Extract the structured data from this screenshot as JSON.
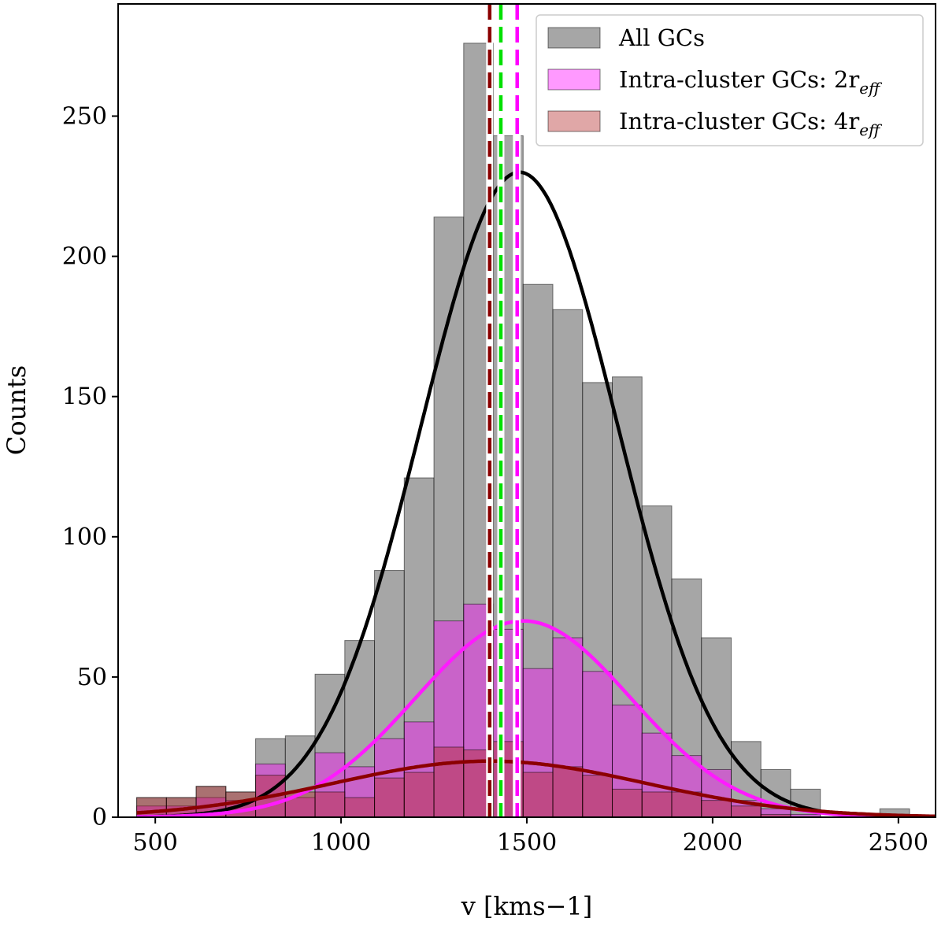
{
  "chart_data": {
    "type": "bar",
    "xlabel": "v [kms−1]",
    "ylabel": "Counts",
    "xlim": [
      400,
      2600
    ],
    "ylim": [
      0,
      290
    ],
    "xticks": [
      500,
      1000,
      1500,
      2000,
      2500
    ],
    "yticks": [
      0,
      50,
      100,
      150,
      200,
      250
    ],
    "bin_edges": [
      450,
      530,
      610,
      690,
      770,
      850,
      930,
      1010,
      1090,
      1170,
      1250,
      1330,
      1410,
      1490,
      1570,
      1650,
      1730,
      1810,
      1890,
      1970,
      2050,
      2130,
      2210,
      2290,
      2370,
      2450,
      2530
    ],
    "legend_position": "top-right",
    "series": [
      {
        "name": "All GCs",
        "color": "#808080",
        "values": [
          7,
          7,
          11,
          9,
          28,
          29,
          51,
          63,
          88,
          121,
          214,
          276,
          243,
          190,
          181,
          155,
          157,
          111,
          85,
          64,
          27,
          17,
          10,
          0,
          0,
          3
        ]
      },
      {
        "name": "Intra-cluster GCs: 2r",
        "name_subscript": "eff",
        "color": "#ff00ff",
        "values": [
          4,
          4,
          7,
          6,
          19,
          7,
          23,
          18,
          28,
          34,
          70,
          76,
          67,
          53,
          64,
          52,
          40,
          30,
          22,
          17,
          6,
          3,
          1,
          0,
          0,
          1
        ]
      },
      {
        "name": "Intra-cluster GCs: 4r",
        "name_subscript": "eff",
        "color": "#b22222",
        "values": [
          7,
          7,
          11,
          9,
          15,
          9,
          9,
          7,
          14,
          16,
          25,
          24,
          27,
          16,
          18,
          15,
          10,
          9,
          9,
          6,
          4,
          1,
          0,
          0,
          0,
          1
        ]
      }
    ],
    "fit_curves": [
      {
        "series": "All GCs",
        "color": "#000000",
        "amplitude": 230,
        "mean": 1480,
        "sigma": 265
      },
      {
        "series": "Intra-cluster GCs: 2r_eff",
        "color": "#ff1aff",
        "amplitude": 70,
        "mean": 1490,
        "sigma": 290
      },
      {
        "series": "Intra-cluster GCs: 4r_eff",
        "color": "#8b0000",
        "amplitude": 20,
        "mean": 1400,
        "sigma": 420
      }
    ],
    "vertical_lines": [
      {
        "x": 1400,
        "color": "#8b0000",
        "style": "dashed"
      },
      {
        "x": 1430,
        "color": "#00e000",
        "style": "dashed"
      },
      {
        "x": 1472,
        "color": "#000000",
        "style": "dashed"
      },
      {
        "x": 1474,
        "color": "#ff00ff",
        "style": "dashed"
      }
    ]
  }
}
